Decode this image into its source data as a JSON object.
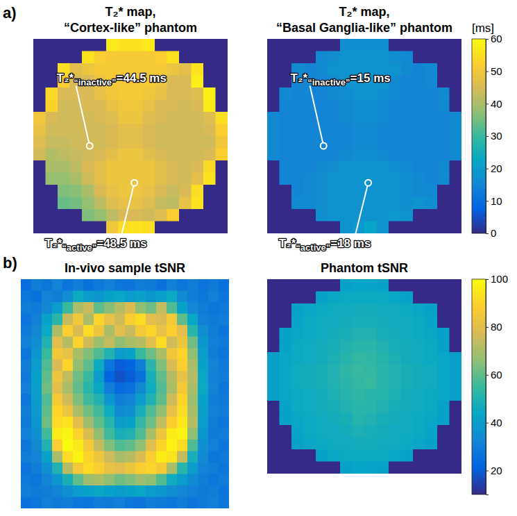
{
  "chart_data": [
    {
      "type": "heatmap",
      "panel": "a)",
      "title": [
        "T₂* map,",
        "“Cortex-like” phantom"
      ],
      "tick_labels": false,
      "zlim": [
        0,
        60
      ],
      "annotations": [
        {
          "symbol": "T₂*",
          "subscript": "“inactive”",
          "text": "=44.5 ms",
          "value": 44.5
        },
        {
          "symbol": "T₂*",
          "subscript": "“active”",
          "text": "=48.5 ms",
          "value": 48.5
        }
      ],
      "cells": [
        [
          0,
          0,
          0,
          0,
          0,
          0,
          57,
          56,
          56,
          57,
          0,
          0,
          0,
          0,
          0,
          0
        ],
        [
          0,
          0,
          0,
          0,
          56,
          52,
          51,
          51,
          51,
          51,
          52,
          56,
          0,
          0,
          0,
          0
        ],
        [
          0,
          0,
          55,
          47,
          49,
          51,
          51,
          51,
          51,
          51,
          51,
          49,
          47,
          56,
          0,
          0
        ],
        [
          0,
          0,
          52,
          45,
          45,
          49,
          51,
          51,
          51,
          51,
          49,
          45,
          45,
          58,
          0,
          0
        ],
        [
          0,
          54,
          45,
          45,
          45,
          48,
          50,
          51,
          51,
          50,
          48,
          45,
          45,
          46,
          58,
          0
        ],
        [
          0,
          53,
          44,
          44,
          45,
          45,
          48,
          50,
          50,
          48,
          45,
          45,
          44,
          45,
          57,
          0
        ],
        [
          50,
          45,
          44,
          44,
          44,
          45,
          46,
          49,
          49,
          46,
          45,
          44,
          44,
          44,
          46,
          55
        ],
        [
          48,
          44,
          44,
          44,
          44,
          44,
          45,
          47,
          47,
          45,
          44,
          44,
          44,
          44,
          45,
          52
        ],
        [
          46,
          43,
          43,
          44,
          44,
          44,
          45,
          47,
          47,
          45,
          44,
          44,
          44,
          44,
          44,
          50
        ],
        [
          44,
          41,
          42,
          43,
          44,
          45,
          47,
          49,
          49,
          47,
          45,
          44,
          44,
          44,
          45,
          52
        ],
        [
          0,
          40,
          40,
          42,
          45,
          47,
          49,
          49,
          49,
          49,
          47,
          45,
          44,
          45,
          54,
          0
        ],
        [
          0,
          38,
          38,
          40,
          44,
          47,
          49,
          49,
          49,
          49,
          47,
          45,
          44,
          47,
          56,
          0
        ],
        [
          0,
          0,
          36,
          37,
          40,
          45,
          48,
          49,
          49,
          48,
          45,
          43,
          45,
          55,
          0,
          0
        ],
        [
          0,
          0,
          34,
          35,
          38,
          42,
          46,
          48,
          48,
          46,
          43,
          42,
          48,
          56,
          0,
          0
        ],
        [
          0,
          0,
          0,
          0,
          36,
          38,
          42,
          45,
          45,
          44,
          46,
          52,
          0,
          0,
          0,
          0
        ],
        [
          0,
          0,
          0,
          0,
          0,
          0,
          50,
          55,
          56,
          55,
          0,
          0,
          0,
          0,
          0,
          0
        ]
      ]
    },
    {
      "type": "heatmap",
      "title": [
        "T₂* map,",
        "“Basal Ganglia-like” phantom"
      ],
      "tick_labels": false,
      "zlim": [
        0,
        60
      ],
      "colorbar": {
        "ticks": [
          0,
          10,
          20,
          30,
          40,
          50,
          60
        ],
        "label": "[ms]"
      },
      "annotations": [
        {
          "symbol": "T₂*",
          "subscript": "“inactive”",
          "text": "=15 ms",
          "value": 15
        },
        {
          "symbol": "T₂*",
          "subscript": "“active”",
          "text": "=18 ms",
          "value": 18
        }
      ],
      "cells": [
        [
          0,
          0,
          0,
          0,
          0,
          0,
          17,
          17,
          17,
          17,
          0,
          0,
          0,
          0,
          0,
          0
        ],
        [
          0,
          0,
          0,
          0,
          16,
          17,
          18,
          18,
          18,
          18,
          17,
          16,
          0,
          0,
          0,
          0
        ],
        [
          0,
          0,
          16,
          15,
          16,
          18,
          18,
          18,
          18,
          18,
          18,
          16,
          15,
          16,
          0,
          0
        ],
        [
          0,
          0,
          15,
          15,
          15,
          16,
          18,
          18,
          18,
          18,
          16,
          15,
          15,
          16,
          0,
          0
        ],
        [
          0,
          16,
          15,
          15,
          15,
          16,
          17,
          18,
          18,
          17,
          16,
          15,
          15,
          15,
          16,
          0
        ],
        [
          0,
          15,
          15,
          15,
          15,
          15,
          16,
          17,
          17,
          16,
          15,
          15,
          15,
          15,
          16,
          0
        ],
        [
          16,
          15,
          15,
          15,
          15,
          15,
          16,
          17,
          17,
          16,
          15,
          15,
          15,
          15,
          15,
          16
        ],
        [
          16,
          15,
          15,
          15,
          15,
          15,
          15,
          16,
          16,
          15,
          15,
          15,
          15,
          15,
          15,
          16
        ],
        [
          16,
          15,
          15,
          15,
          15,
          15,
          15,
          16,
          16,
          15,
          15,
          15,
          15,
          15,
          15,
          16
        ],
        [
          16,
          15,
          15,
          15,
          15,
          15,
          16,
          17,
          17,
          16,
          15,
          15,
          15,
          15,
          15,
          16
        ],
        [
          0,
          15,
          15,
          15,
          16,
          17,
          18,
          18,
          18,
          18,
          17,
          16,
          15,
          15,
          16,
          0
        ],
        [
          0,
          15,
          15,
          16,
          17,
          18,
          18,
          18,
          18,
          18,
          18,
          17,
          16,
          15,
          16,
          0
        ],
        [
          0,
          0,
          15,
          16,
          17,
          18,
          18,
          18,
          18,
          18,
          18,
          17,
          16,
          16,
          0,
          0
        ],
        [
          0,
          0,
          16,
          16,
          17,
          18,
          18,
          18,
          18,
          18,
          18,
          17,
          18,
          17,
          0,
          0
        ],
        [
          0,
          0,
          0,
          0,
          17,
          18,
          18,
          18,
          18,
          18,
          19,
          18,
          0,
          0,
          0,
          0
        ],
        [
          0,
          0,
          0,
          0,
          0,
          0,
          18,
          19,
          22,
          18,
          0,
          0,
          0,
          0,
          0,
          0
        ]
      ]
    },
    {
      "type": "heatmap",
      "panel": "b)",
      "title": [
        "In-vivo sample tSNR"
      ],
      "tick_labels": false,
      "zlim": [
        10,
        100
      ],
      "cells": [
        [
          25,
          30,
          28,
          32,
          27,
          30,
          26,
          29,
          31,
          28,
          27,
          30,
          29,
          26,
          31,
          28,
          30,
          27,
          29,
          26
        ],
        [
          28,
          26,
          32,
          30,
          35,
          45,
          40,
          38,
          42,
          44,
          40,
          42,
          38,
          41,
          45,
          34,
          30,
          28,
          31,
          27
        ],
        [
          30,
          29,
          33,
          40,
          55,
          70,
          75,
          60,
          65,
          72,
          78,
          66,
          62,
          74,
          58,
          42,
          33,
          30,
          28,
          29
        ],
        [
          27,
          31,
          42,
          52,
          75,
          85,
          70,
          90,
          82,
          76,
          88,
          92,
          80,
          78,
          86,
          60,
          44,
          31,
          29,
          30
        ],
        [
          29,
          33,
          45,
          70,
          88,
          78,
          92,
          84,
          70,
          80,
          75,
          86,
          90,
          82,
          88,
          80,
          52,
          35,
          30,
          27
        ],
        [
          31,
          35,
          50,
          80,
          72,
          90,
          76,
          68,
          74,
          66,
          70,
          72,
          80,
          92,
          76,
          84,
          62,
          38,
          31,
          29
        ],
        [
          28,
          38,
          55,
          85,
          82,
          70,
          64,
          58,
          50,
          40,
          42,
          55,
          62,
          70,
          85,
          90,
          66,
          40,
          30,
          28
        ],
        [
          30,
          40,
          58,
          78,
          90,
          66,
          60,
          45,
          28,
          20,
          22,
          30,
          52,
          64,
          78,
          88,
          70,
          42,
          32,
          29
        ],
        [
          29,
          42,
          60,
          84,
          74,
          62,
          55,
          40,
          22,
          18,
          20,
          26,
          48,
          60,
          72,
          82,
          72,
          44,
          31,
          30
        ],
        [
          31,
          41,
          62,
          80,
          70,
          60,
          52,
          44,
          30,
          24,
          26,
          34,
          46,
          58,
          70,
          86,
          70,
          45,
          32,
          28
        ],
        [
          28,
          40,
          58,
          86,
          76,
          64,
          56,
          50,
          38,
          30,
          32,
          40,
          50,
          60,
          76,
          90,
          68,
          42,
          30,
          29
        ],
        [
          30,
          39,
          60,
          90,
          84,
          70,
          62,
          56,
          46,
          34,
          36,
          48,
          58,
          66,
          82,
          92,
          70,
          41,
          31,
          30
        ],
        [
          29,
          38,
          62,
          92,
          94,
          80,
          68,
          60,
          52,
          40,
          42,
          54,
          62,
          74,
          88,
          95,
          72,
          40,
          30,
          28
        ],
        [
          31,
          36,
          56,
          96,
          98,
          90,
          78,
          66,
          56,
          48,
          50,
          58,
          70,
          84,
          96,
          98,
          66,
          38,
          29,
          30
        ],
        [
          28,
          34,
          50,
          88,
          100,
          95,
          86,
          74,
          64,
          58,
          60,
          66,
          80,
          90,
          98,
          92,
          58,
          36,
          31,
          27
        ],
        [
          30,
          32,
          42,
          70,
          92,
          98,
          90,
          84,
          76,
          70,
          72,
          78,
          88,
          96,
          94,
          74,
          48,
          34,
          28,
          29
        ],
        [
          27,
          30,
          36,
          50,
          72,
          86,
          92,
          88,
          82,
          80,
          84,
          88,
          90,
          86,
          70,
          52,
          40,
          32,
          30,
          28
        ],
        [
          29,
          28,
          32,
          38,
          48,
          60,
          68,
          70,
          66,
          62,
          64,
          68,
          66,
          58,
          46,
          40,
          34,
          30,
          28,
          30
        ],
        [
          30,
          29,
          30,
          32,
          36,
          40,
          42,
          44,
          42,
          40,
          42,
          44,
          40,
          38,
          35,
          33,
          31,
          29,
          30,
          27
        ],
        [
          26,
          28,
          31,
          29,
          30,
          28,
          27,
          30,
          29,
          31,
          28,
          27,
          30,
          29,
          28,
          30,
          27,
          29,
          31,
          28
        ]
      ]
    },
    {
      "type": "heatmap",
      "title": [
        "Phantom tSNR"
      ],
      "tick_labels": false,
      "zlim": [
        10,
        100
      ],
      "colorbar": {
        "ticks": [
          20,
          40,
          60,
          80,
          100
        ]
      },
      "cells": [
        [
          10,
          10,
          10,
          10,
          10,
          10,
          42,
          43,
          43,
          42,
          10,
          10,
          10,
          10,
          10,
          10
        ],
        [
          10,
          10,
          10,
          10,
          42,
          44,
          45,
          45,
          45,
          45,
          44,
          42,
          10,
          10,
          10,
          10
        ],
        [
          10,
          10,
          42,
          44,
          45,
          46,
          46,
          47,
          47,
          46,
          46,
          45,
          44,
          42,
          10,
          10
        ],
        [
          10,
          10,
          43,
          45,
          46,
          46,
          47,
          48,
          48,
          47,
          46,
          46,
          45,
          43,
          10,
          10
        ],
        [
          10,
          42,
          44,
          45,
          46,
          47,
          48,
          50,
          50,
          48,
          47,
          46,
          45,
          44,
          42,
          10
        ],
        [
          10,
          42,
          45,
          46,
          47,
          48,
          50,
          52,
          52,
          50,
          48,
          47,
          46,
          45,
          42,
          10
        ],
        [
          41,
          44,
          45,
          46,
          47,
          49,
          51,
          54,
          53,
          51,
          49,
          47,
          46,
          45,
          44,
          41
        ],
        [
          41,
          44,
          46,
          47,
          48,
          50,
          53,
          55,
          54,
          52,
          50,
          48,
          47,
          46,
          44,
          41
        ],
        [
          41,
          44,
          46,
          47,
          48,
          50,
          52,
          54,
          55,
          52,
          50,
          48,
          47,
          46,
          44,
          41
        ],
        [
          41,
          44,
          45,
          46,
          47,
          49,
          51,
          53,
          52,
          51,
          49,
          47,
          46,
          45,
          44,
          41
        ],
        [
          10,
          42,
          45,
          46,
          47,
          48,
          50,
          52,
          52,
          50,
          48,
          47,
          46,
          45,
          42,
          10
        ],
        [
          10,
          42,
          44,
          45,
          46,
          47,
          48,
          51,
          50,
          48,
          47,
          46,
          45,
          44,
          42,
          10
        ],
        [
          10,
          10,
          43,
          45,
          46,
          46,
          47,
          49,
          48,
          47,
          46,
          46,
          45,
          43,
          10,
          10
        ],
        [
          10,
          10,
          42,
          44,
          45,
          46,
          46,
          47,
          47,
          46,
          46,
          45,
          44,
          42,
          10,
          10
        ],
        [
          10,
          10,
          10,
          10,
          42,
          44,
          45,
          45,
          45,
          45,
          44,
          42,
          10,
          10,
          10,
          10
        ],
        [
          10,
          10,
          10,
          10,
          10,
          10,
          42,
          43,
          43,
          42,
          10,
          10,
          10,
          10,
          10,
          10
        ]
      ]
    }
  ]
}
